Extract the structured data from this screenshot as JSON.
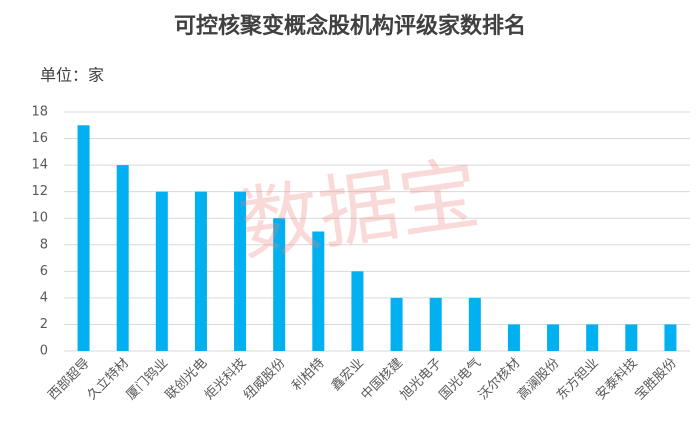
{
  "chart_data": {
    "type": "bar",
    "title": "可控核聚变概念股机构评级家数排名",
    "unit_label": "单位：家",
    "watermark": "数据宝",
    "categories": [
      "西部超导",
      "久立特材",
      "厦门钨业",
      "联创光电",
      "炬光科技",
      "纽威股份",
      "利柏特",
      "鑫宏业",
      "中国核建",
      "旭光电子",
      "国光电气",
      "沃尔核材",
      "高澜股份",
      "东方钽业",
      "安泰科技",
      "宝胜股份"
    ],
    "values": [
      17,
      14,
      12,
      12,
      12,
      10,
      9,
      6,
      4,
      4,
      4,
      2,
      2,
      2,
      2,
      2
    ],
    "color": "#00b0f0",
    "ylim": [
      0,
      18
    ],
    "yticks": [
      0,
      2,
      4,
      6,
      8,
      10,
      12,
      14,
      16,
      18
    ],
    "grid": true
  }
}
